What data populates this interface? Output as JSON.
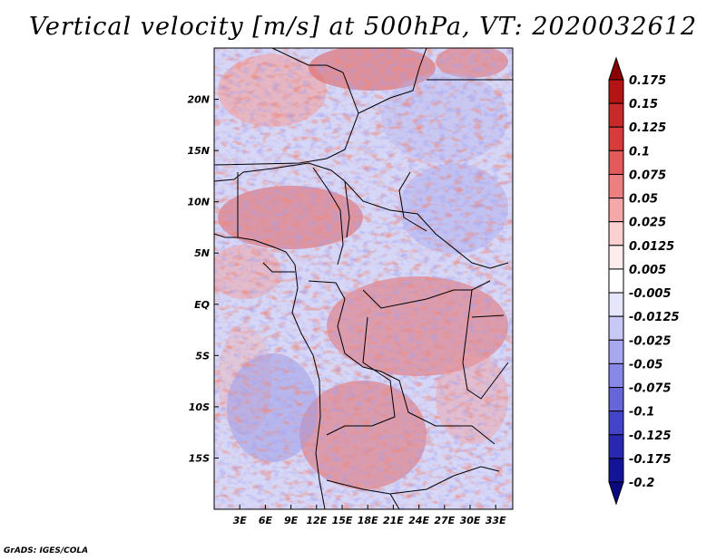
{
  "title": "Vertical velocity [m/s] at 500hPa, VT: 2020032612",
  "credit": "GrADS: IGES/COLA",
  "map": {
    "lon_range": [
      0,
      35
    ],
    "lat_range": [
      -20,
      25
    ],
    "lon_ticks": [
      "3E",
      "6E",
      "9E",
      "12E",
      "15E",
      "18E",
      "21E",
      "24E",
      "27E",
      "30E",
      "33E"
    ],
    "lon_tick_values": [
      3,
      6,
      9,
      12,
      15,
      18,
      21,
      24,
      27,
      30,
      33
    ],
    "lat_ticks": [
      "20N",
      "15N",
      "10N",
      "5N",
      "EQ",
      "5S",
      "10S",
      "15S"
    ],
    "lat_tick_values": [
      20,
      15,
      10,
      5,
      0,
      -5,
      -10,
      -15
    ]
  },
  "colorbar": {
    "labels": [
      "0.175",
      "0.15",
      "0.125",
      "0.1",
      "0.075",
      "0.05",
      "0.025",
      "0.0125",
      "0.005",
      "-0.005",
      "-0.0125",
      "-0.025",
      "-0.05",
      "-0.075",
      "-0.1",
      "-0.125",
      "-0.175",
      "-0.2"
    ],
    "colors": [
      "#8b0000",
      "#b31414",
      "#c72a2a",
      "#d63c3c",
      "#e25a5a",
      "#ec8080",
      "#f5a8a8",
      "#fad0d0",
      "#fdecec",
      "#ffffff",
      "#e6e6fa",
      "#c8c8f5",
      "#a8a8f0",
      "#8888e6",
      "#6666d9",
      "#4444c8",
      "#2828b0",
      "#141496",
      "#0a0a80"
    ]
  }
}
